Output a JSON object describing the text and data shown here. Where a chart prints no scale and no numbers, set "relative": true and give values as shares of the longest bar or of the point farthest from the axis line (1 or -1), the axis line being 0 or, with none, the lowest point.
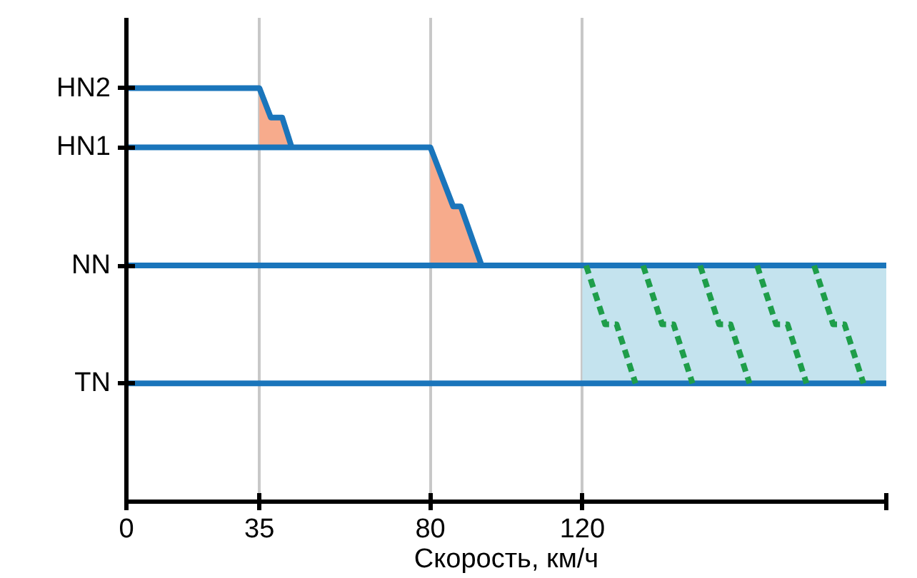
{
  "chart_data": {
    "type": "line",
    "relative": true,
    "xlabel": "Скорость, км/ч",
    "xlim": [
      0,
      200
    ],
    "xticks": [
      0,
      35,
      80,
      120,
      {
        "value": 200,
        "label": null
      }
    ],
    "grid": "x",
    "line_style": "solid",
    "series": [
      {
        "type": "area",
        "x": [
          120,
          200,
          200,
          120
        ],
        "values": [
          0.571,
          0.571,
          0.286,
          0.286
        ],
        "color": "#c4e3ee"
      },
      {
        "type": "area",
        "x": [
          35,
          38,
          41,
          43.5,
          35
        ],
        "values": [
          1,
          0.929,
          0.929,
          0.857,
          0.857
        ],
        "color": "#f7ab8c"
      },
      {
        "type": "area",
        "x": [
          80,
          86,
          88,
          93.5,
          80
        ],
        "values": [
          0.857,
          0.714,
          0.714,
          0.571,
          0.571
        ],
        "color": "#f7ab8c"
      },
      {
        "name": "HN2",
        "x": [
          0,
          35,
          38,
          41,
          43.5
        ],
        "values": [
          1,
          1,
          0.929,
          0.929,
          0.857
        ],
        "color": "#1a75bb"
      },
      {
        "name": "HN1",
        "x": [
          0,
          80,
          86,
          88,
          93.5
        ],
        "values": [
          0.857,
          0.857,
          0.714,
          0.714,
          0.571
        ],
        "color": "#1a75bb"
      },
      {
        "name": "NN",
        "x": [
          0,
          200
        ],
        "values": [
          0.571,
          0.571
        ],
        "color": "#1a75bb"
      },
      {
        "name": "TN",
        "x": [
          0,
          200
        ],
        "values": [
          0.286,
          0.286
        ],
        "color": "#1a75bb"
      },
      {
        "x": [
          121,
          126,
          129,
          134
        ],
        "values": [
          0.571,
          0.429,
          0.429,
          0.286
        ],
        "color": "#1e9e4a",
        "line_style": "dashed"
      },
      {
        "x": [
          136,
          141,
          144,
          149
        ],
        "values": [
          0.571,
          0.429,
          0.429,
          0.286
        ],
        "color": "#1e9e4a",
        "line_style": "dashed"
      },
      {
        "x": [
          151,
          156,
          159,
          164
        ],
        "values": [
          0.571,
          0.429,
          0.429,
          0.286
        ],
        "color": "#1e9e4a",
        "line_style": "dashed"
      },
      {
        "x": [
          166,
          171,
          174,
          179
        ],
        "values": [
          0.571,
          0.429,
          0.429,
          0.286
        ],
        "color": "#1e9e4a",
        "line_style": "dashed"
      },
      {
        "x": [
          181,
          186,
          189,
          194
        ],
        "values": [
          0.571,
          0.429,
          0.429,
          0.286
        ],
        "color": "#1e9e4a",
        "line_style": "dashed"
      }
    ]
  }
}
